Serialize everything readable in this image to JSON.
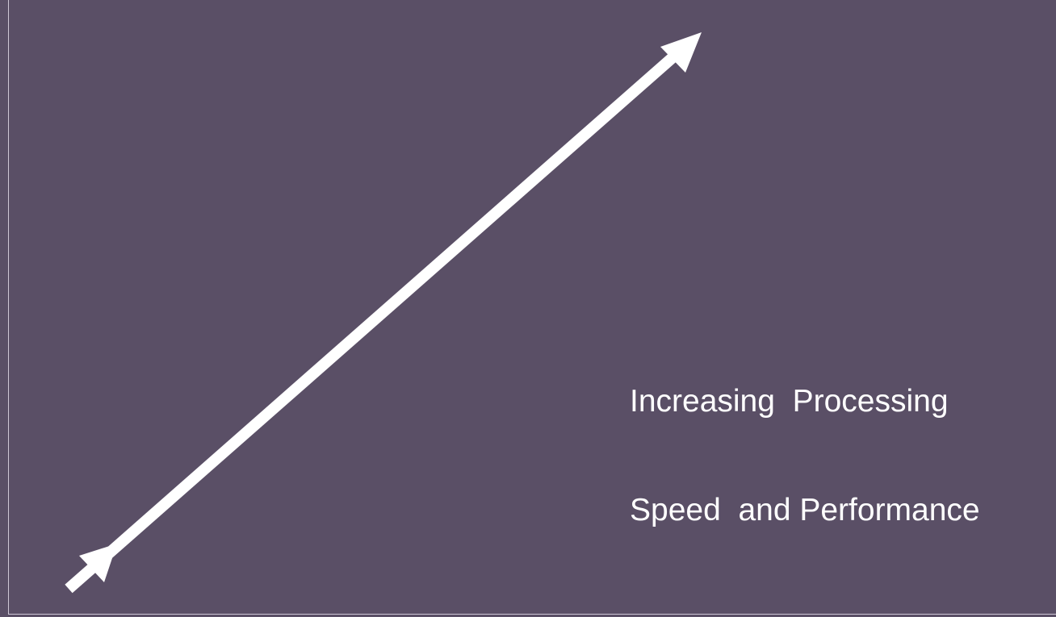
{
  "caption": {
    "line1": "Increasing  Processing",
    "line2": "Speed  and Performance"
  },
  "colors": {
    "background": "#5a4f66",
    "arrow": "#ffffff",
    "text": "#ffffff",
    "frame": "#cfc8d6"
  },
  "arrow": {
    "direction": "up-right",
    "style": "double-headed"
  }
}
